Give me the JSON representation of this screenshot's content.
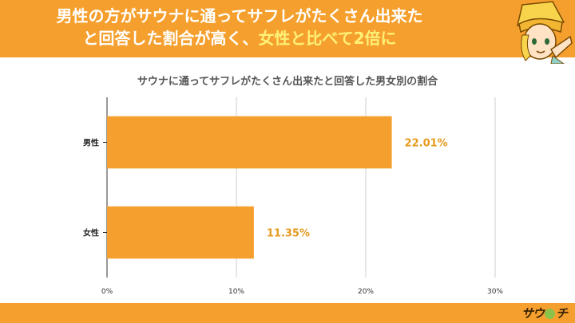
{
  "headline": {
    "line1": "男性の方がサウナに通ってサフレがたくさん出来た",
    "line2_pre": "と回答した割合が高く、",
    "line2_highlight": "女性と比べて2倍に"
  },
  "footer": {
    "logo_pre": "サウ",
    "logo_post": "チ"
  },
  "colors": {
    "accent": "#f5a02e",
    "bar": "#f5a02e",
    "label": "#e69a1f",
    "highlight": "#fff176"
  },
  "chart_data": {
    "type": "bar",
    "orientation": "horizontal",
    "title": "サウナに通ってサフレがたくさん出来たと回答した男女別の割合",
    "categories": [
      "男性",
      "女性"
    ],
    "values": [
      22.01,
      11.35
    ],
    "data_labels": [
      "22.01%",
      "11.35%"
    ],
    "xlim": [
      0,
      30
    ],
    "xticks": [
      0,
      10,
      20,
      30
    ],
    "xtick_labels": [
      "0%",
      "10%",
      "20%",
      "30%"
    ],
    "grid": true,
    "legend": "none"
  }
}
